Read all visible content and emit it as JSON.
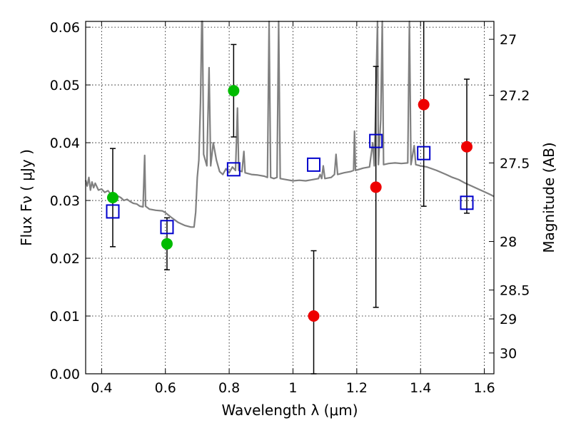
{
  "chart_data": {
    "type": "scatter",
    "xlabel": "Wavelength  λ (μm)",
    "ylabel": "Flux  Fν  ( μJy )",
    "ylabel_right": "Magnitude (AB)",
    "xlim": [
      0.35,
      1.63
    ],
    "ylim": [
      0.0,
      0.061
    ],
    "grid": true,
    "x_ticks": [
      {
        "value": 0.4,
        "label": "0.4"
      },
      {
        "value": 0.6,
        "label": "0.6"
      },
      {
        "value": 0.8,
        "label": "0.8"
      },
      {
        "value": 1.0,
        "label": "1"
      },
      {
        "value": 1.2,
        "label": "1.2"
      },
      {
        "value": 1.4,
        "label": "1.4"
      },
      {
        "value": 1.6,
        "label": "1.6"
      }
    ],
    "y_ticks": [
      {
        "value": 0.0,
        "label": "0.00"
      },
      {
        "value": 0.01,
        "label": "0.01"
      },
      {
        "value": 0.02,
        "label": "0.02"
      },
      {
        "value": 0.03,
        "label": "0.03"
      },
      {
        "value": 0.04,
        "label": "0.04"
      },
      {
        "value": 0.05,
        "label": "0.05"
      },
      {
        "value": 0.06,
        "label": "0.06"
      }
    ],
    "right_ticks": [
      {
        "flux": 0.0579,
        "label": "27"
      },
      {
        "flux": 0.0482,
        "label": "27.2"
      },
      {
        "flux": 0.0365,
        "label": "27.5"
      },
      {
        "flux": 0.0229,
        "label": "28"
      },
      {
        "flux": 0.0145,
        "label": "28.5"
      },
      {
        "flux": 0.0095,
        "label": "29"
      },
      {
        "flux": 0.0036,
        "label": "30"
      }
    ],
    "series": [
      {
        "marker": "circle",
        "color": "#00bb00",
        "points": [
          {
            "x": 0.435,
            "y": 0.0305,
            "err_lo": 0.022,
            "err_hi": 0.039
          },
          {
            "x": 0.605,
            "y": 0.0225,
            "err_lo": 0.018,
            "err_hi": 0.027
          },
          {
            "x": 0.814,
            "y": 0.049,
            "err_lo": 0.041,
            "err_hi": 0.057
          }
        ]
      },
      {
        "marker": "circle",
        "color": "#ee0000",
        "points": [
          {
            "x": 1.065,
            "y": 0.01,
            "err_lo": 0.0,
            "err_hi": 0.0213
          },
          {
            "x": 1.26,
            "y": 0.0323,
            "err_lo": 0.0115,
            "err_hi": 0.0532
          },
          {
            "x": 1.41,
            "y": 0.0466,
            "err_lo": 0.029,
            "err_hi": 0.062
          },
          {
            "x": 1.545,
            "y": 0.0393,
            "err_lo": 0.0278,
            "err_hi": 0.051
          }
        ]
      },
      {
        "marker": "open-square",
        "color": "#0000cc",
        "points": [
          {
            "x": 0.435,
            "y": 0.0281
          },
          {
            "x": 0.605,
            "y": 0.0254
          },
          {
            "x": 0.814,
            "y": 0.0354
          },
          {
            "x": 1.065,
            "y": 0.0362
          },
          {
            "x": 1.26,
            "y": 0.0403
          },
          {
            "x": 1.41,
            "y": 0.0382
          },
          {
            "x": 1.545,
            "y": 0.0296
          }
        ]
      }
    ],
    "model_spectrum": {
      "color": "#808080",
      "points": [
        [
          0.35,
          0.0335
        ],
        [
          0.355,
          0.0325
        ],
        [
          0.36,
          0.034
        ],
        [
          0.365,
          0.0318
        ],
        [
          0.37,
          0.0332
        ],
        [
          0.375,
          0.0322
        ],
        [
          0.38,
          0.033
        ],
        [
          0.39,
          0.0318
        ],
        [
          0.4,
          0.032
        ],
        [
          0.41,
          0.0314
        ],
        [
          0.42,
          0.0317
        ],
        [
          0.43,
          0.031
        ],
        [
          0.44,
          0.0303
        ],
        [
          0.45,
          0.0308
        ],
        [
          0.46,
          0.0305
        ],
        [
          0.47,
          0.03
        ],
        [
          0.48,
          0.0302
        ],
        [
          0.49,
          0.0298
        ],
        [
          0.5,
          0.0295
        ],
        [
          0.51,
          0.0294
        ],
        [
          0.52,
          0.029
        ],
        [
          0.53,
          0.0289
        ],
        [
          0.535,
          0.0378
        ],
        [
          0.538,
          0.029
        ],
        [
          0.55,
          0.0285
        ],
        [
          0.57,
          0.0283
        ],
        [
          0.59,
          0.0282
        ],
        [
          0.6,
          0.0279
        ],
        [
          0.62,
          0.027
        ],
        [
          0.64,
          0.0262
        ],
        [
          0.66,
          0.0257
        ],
        [
          0.68,
          0.0254
        ],
        [
          0.69,
          0.0254
        ],
        [
          0.695,
          0.028
        ],
        [
          0.7,
          0.034
        ],
        [
          0.705,
          0.037
        ],
        [
          0.71,
          0.047
        ],
        [
          0.714,
          0.062
        ],
        [
          0.716,
          0.062
        ],
        [
          0.72,
          0.038
        ],
        [
          0.73,
          0.036
        ],
        [
          0.737,
          0.053
        ],
        [
          0.742,
          0.036
        ],
        [
          0.75,
          0.04
        ],
        [
          0.76,
          0.037
        ],
        [
          0.77,
          0.035
        ],
        [
          0.78,
          0.0345
        ],
        [
          0.79,
          0.0355
        ],
        [
          0.8,
          0.0348
        ],
        [
          0.81,
          0.0358
        ],
        [
          0.82,
          0.0352
        ],
        [
          0.826,
          0.046
        ],
        [
          0.83,
          0.0352
        ],
        [
          0.84,
          0.035
        ],
        [
          0.846,
          0.0385
        ],
        [
          0.85,
          0.0348
        ],
        [
          0.87,
          0.0345
        ],
        [
          0.89,
          0.0344
        ],
        [
          0.91,
          0.0342
        ],
        [
          0.92,
          0.034
        ],
        [
          0.925,
          0.062
        ],
        [
          0.93,
          0.034
        ],
        [
          0.94,
          0.0338
        ],
        [
          0.95,
          0.034
        ],
        [
          0.955,
          0.062
        ],
        [
          0.96,
          0.0338
        ],
        [
          0.98,
          0.0336
        ],
        [
          1.0,
          0.0334
        ],
        [
          1.02,
          0.0335
        ],
        [
          1.04,
          0.0334
        ],
        [
          1.06,
          0.0336
        ],
        [
          1.08,
          0.0338
        ],
        [
          1.085,
          0.0345
        ],
        [
          1.09,
          0.0338
        ],
        [
          1.095,
          0.036
        ],
        [
          1.1,
          0.0338
        ],
        [
          1.12,
          0.034
        ],
        [
          1.13,
          0.0345
        ],
        [
          1.135,
          0.038
        ],
        [
          1.14,
          0.0345
        ],
        [
          1.16,
          0.0348
        ],
        [
          1.18,
          0.035
        ],
        [
          1.19,
          0.0352
        ],
        [
          1.193,
          0.042
        ],
        [
          1.196,
          0.0352
        ],
        [
          1.22,
          0.0356
        ],
        [
          1.24,
          0.0358
        ],
        [
          1.25,
          0.04
        ],
        [
          1.255,
          0.036
        ],
        [
          1.265,
          0.062
        ],
        [
          1.268,
          0.0362
        ],
        [
          1.275,
          0.044
        ],
        [
          1.28,
          0.062
        ],
        [
          1.284,
          0.0362
        ],
        [
          1.3,
          0.0364
        ],
        [
          1.32,
          0.0365
        ],
        [
          1.34,
          0.0364
        ],
        [
          1.36,
          0.0365
        ],
        [
          1.365,
          0.062
        ],
        [
          1.37,
          0.0362
        ],
        [
          1.38,
          0.0395
        ],
        [
          1.385,
          0.0362
        ],
        [
          1.4,
          0.036
        ],
        [
          1.42,
          0.0358
        ],
        [
          1.45,
          0.0352
        ],
        [
          1.48,
          0.0345
        ],
        [
          1.5,
          0.034
        ],
        [
          1.52,
          0.0336
        ],
        [
          1.54,
          0.033
        ],
        [
          1.56,
          0.0325
        ],
        [
          1.58,
          0.032
        ],
        [
          1.6,
          0.0315
        ],
        [
          1.62,
          0.031
        ],
        [
          1.63,
          0.0307
        ]
      ]
    }
  }
}
